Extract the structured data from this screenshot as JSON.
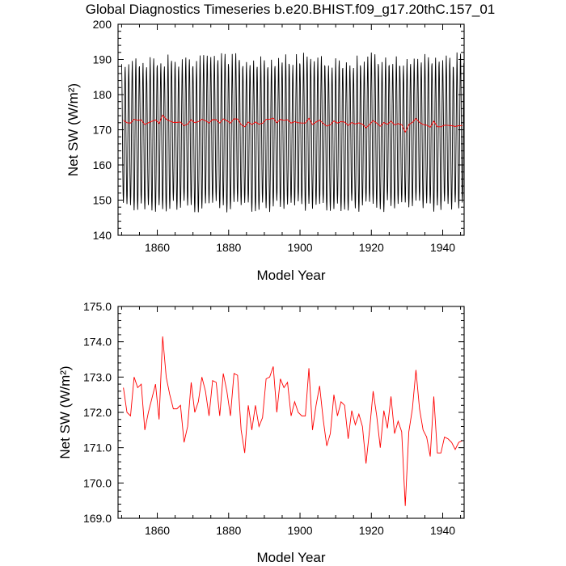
{
  "title": "Global Diagnostics Timeseries b.e20.BHIST.f09_g17.20thC.157_01",
  "chart_data": [
    {
      "type": "line",
      "xlabel": "Model Year",
      "ylabel": "Net SW (W/m²)",
      "xlim": [
        1849,
        1946
      ],
      "ylim": [
        140,
        200
      ],
      "xticks": [
        1860,
        1880,
        1900,
        1920,
        1940
      ],
      "yticks": [
        140,
        150,
        160,
        170,
        180,
        190,
        200
      ],
      "ytick_labels": [
        "140",
        "150",
        "160",
        "170",
        "180",
        "190",
        "200"
      ],
      "series": [
        {
          "kind": "monthly",
          "color": "#000000",
          "years": [
            1850,
            1945
          ],
          "annual_cycle": [
            188.5,
            184.0,
            176.5,
            167.0,
            158.0,
            151.5,
            149.0,
            151.5,
            158.5,
            168.5,
            178.5,
            186.0
          ],
          "seasonal_peak_min": 187.5,
          "seasonal_peak_max": 192.0,
          "seasonal_trough_min": 146.5,
          "seasonal_trough_max": 150.0
        },
        {
          "kind": "annual_mean",
          "color": "#ff0000",
          "same_as": "annual_mean_series"
        }
      ]
    },
    {
      "type": "line",
      "xlabel": "Model Year",
      "ylabel": "Net SW (W/m²)",
      "xlim": [
        1849,
        1946
      ],
      "ylim": [
        169,
        175
      ],
      "xticks": [
        1860,
        1880,
        1900,
        1920,
        1940
      ],
      "yticks": [
        169,
        170,
        171,
        172,
        173,
        174,
        175
      ],
      "ytick_labels": [
        "169.0",
        "170.0",
        "171.0",
        "172.0",
        "173.0",
        "174.0",
        "175.0"
      ],
      "series": [
        {
          "kind": "annual_mean",
          "color": "#ff0000",
          "x": [
            1850,
            1851,
            1852,
            1853,
            1854,
            1855,
            1856,
            1857,
            1858,
            1859,
            1860,
            1861,
            1862,
            1863,
            1864,
            1865,
            1866,
            1867,
            1868,
            1869,
            1870,
            1871,
            1872,
            1873,
            1874,
            1875,
            1876,
            1877,
            1878,
            1879,
            1880,
            1881,
            1882,
            1883,
            1884,
            1885,
            1886,
            1887,
            1888,
            1889,
            1890,
            1891,
            1892,
            1893,
            1894,
            1895,
            1896,
            1897,
            1898,
            1899,
            1900,
            1901,
            1902,
            1903,
            1904,
            1905,
            1906,
            1907,
            1908,
            1909,
            1910,
            1911,
            1912,
            1913,
            1914,
            1915,
            1916,
            1917,
            1918,
            1919,
            1920,
            1921,
            1922,
            1923,
            1924,
            1925,
            1926,
            1927,
            1928,
            1929,
            1930,
            1931,
            1932,
            1933,
            1934,
            1935,
            1936,
            1937,
            1938,
            1939,
            1940,
            1941,
            1942,
            1943,
            1944,
            1945
          ],
          "y": [
            172.7,
            172.0,
            171.9,
            173.0,
            172.7,
            172.8,
            171.5,
            172.0,
            172.4,
            172.8,
            171.8,
            174.15,
            173.0,
            172.5,
            172.1,
            172.1,
            172.2,
            171.15,
            171.6,
            172.85,
            172.0,
            172.3,
            173.0,
            172.6,
            171.9,
            172.9,
            172.85,
            171.9,
            173.1,
            172.6,
            171.9,
            173.1,
            173.05,
            171.5,
            170.85,
            172.2,
            171.5,
            172.2,
            171.6,
            171.85,
            172.95,
            173.0,
            173.3,
            172.0,
            172.95,
            172.7,
            172.85,
            171.9,
            172.3,
            172.0,
            171.9,
            171.9,
            173.25,
            171.5,
            172.2,
            172.75,
            171.8,
            171.05,
            171.4,
            172.5,
            171.9,
            172.3,
            172.2,
            171.25,
            172.05,
            171.65,
            171.95,
            171.6,
            170.55,
            171.5,
            172.6,
            171.9,
            171.0,
            172.05,
            171.55,
            172.45,
            171.4,
            171.75,
            171.45,
            169.35,
            171.45,
            172.1,
            173.2,
            172.1,
            171.5,
            171.3,
            170.75,
            172.45,
            170.85,
            170.85,
            171.3,
            171.25,
            171.15,
            170.95,
            171.15,
            171.2
          ]
        }
      ]
    }
  ]
}
